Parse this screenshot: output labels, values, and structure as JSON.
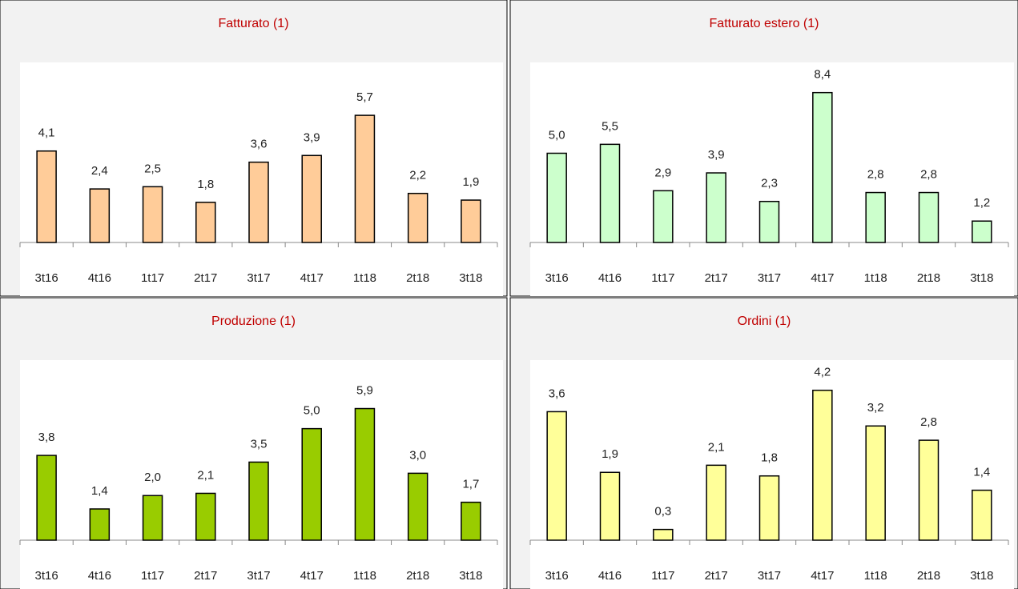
{
  "chart_data": [
    {
      "type": "bar",
      "title": "Fatturato (1)",
      "color": "#ffcc99",
      "ylim": [
        0,
        8
      ],
      "categories": [
        "3t16",
        "4t16",
        "1t17",
        "2t17",
        "3t17",
        "4t17",
        "1t18",
        "2t18",
        "3t18"
      ],
      "values": [
        4.1,
        2.4,
        2.5,
        1.8,
        3.6,
        3.9,
        5.7,
        2.2,
        1.9
      ],
      "value_labels": [
        "4,1",
        "2,4",
        "2,5",
        "1,8",
        "3,6",
        "3,9",
        "5,7",
        "2,2",
        "1,9"
      ]
    },
    {
      "type": "bar",
      "title": "Fatturato estero (1)",
      "color": "#ccffcc",
      "ylim": [
        0,
        10
      ],
      "categories": [
        "3t16",
        "4t16",
        "1t17",
        "2t17",
        "3t17",
        "4t17",
        "1t18",
        "2t18",
        "3t18"
      ],
      "values": [
        5.0,
        5.5,
        2.9,
        3.9,
        2.3,
        8.4,
        2.8,
        2.8,
        1.2
      ],
      "value_labels": [
        "5,0",
        "5,5",
        "2,9",
        "3,9",
        "2,3",
        "8,4",
        "2,8",
        "2,8",
        "1,2"
      ]
    },
    {
      "type": "bar",
      "title": "Produzione (1)",
      "color": "#99cc00",
      "ylim": [
        0,
        8
      ],
      "categories": [
        "3t16",
        "4t16",
        "1t17",
        "2t17",
        "3t17",
        "4t17",
        "1t18",
        "2t18",
        "3t18"
      ],
      "values": [
        3.8,
        1.4,
        2.0,
        2.1,
        3.5,
        5.0,
        5.9,
        3.0,
        1.7
      ],
      "value_labels": [
        "3,8",
        "1,4",
        "2,0",
        "2,1",
        "3,5",
        "5,0",
        "5,9",
        "3,0",
        "1,7"
      ]
    },
    {
      "type": "bar",
      "title": "Ordini (1)",
      "color": "#ffff99",
      "ylim": [
        0,
        5
      ],
      "categories": [
        "3t16",
        "4t16",
        "1t17",
        "2t17",
        "3t17",
        "4t17",
        "1t18",
        "2t18",
        "3t18"
      ],
      "values": [
        3.6,
        1.9,
        0.3,
        2.1,
        1.8,
        4.2,
        3.2,
        2.8,
        1.4
      ],
      "value_labels": [
        "3,6",
        "1,9",
        "0,3",
        "2,1",
        "1,8",
        "4,2",
        "3,2",
        "2,8",
        "1,4"
      ]
    }
  ]
}
